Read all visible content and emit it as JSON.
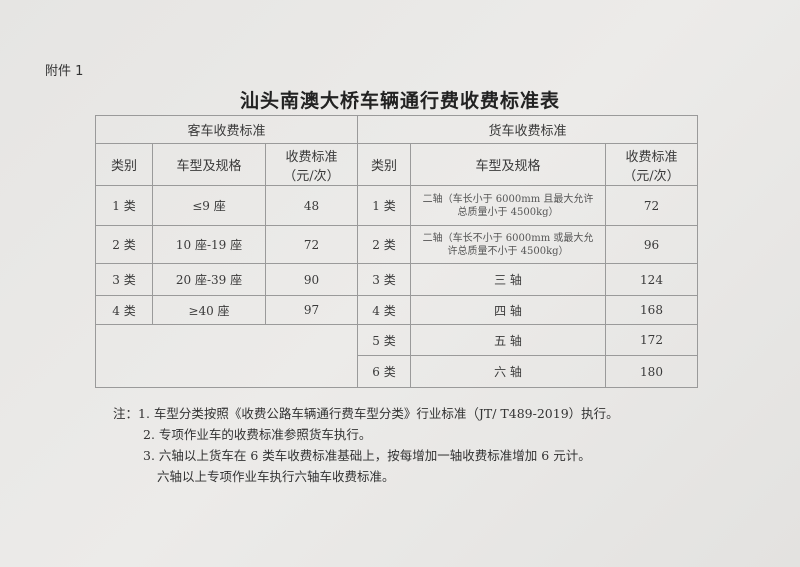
{
  "attachment": "附件 1",
  "title": "汕头南澳大桥车辆通行费收费标准表",
  "passenger": {
    "heading": "客车收费标准",
    "col_class": "类别",
    "col_type": "车型及规格",
    "col_fee": "收费标准\n（元/次）",
    "rows": [
      {
        "cls": "1 类",
        "type": "≤9 座",
        "fee": "48"
      },
      {
        "cls": "2 类",
        "type": "10 座-19 座",
        "fee": "72"
      },
      {
        "cls": "3 类",
        "type": "20 座-39 座",
        "fee": "90"
      },
      {
        "cls": "4 类",
        "type": "≥40 座",
        "fee": "97"
      }
    ]
  },
  "truck": {
    "heading": "货车收费标准",
    "col_class": "类别",
    "col_type": "车型及规格",
    "col_fee": "收费标准\n（元/次）",
    "rows": [
      {
        "cls": "1 类",
        "type": "二轴（车长小于 6000mm 且最大允许总质量小于 4500kg）",
        "fee": "72"
      },
      {
        "cls": "2 类",
        "type": "二轴（车长不小于 6000mm 或最大允许总质量不小于 4500kg）",
        "fee": "96"
      },
      {
        "cls": "3 类",
        "type": "三 轴",
        "fee": "124"
      },
      {
        "cls": "4 类",
        "type": "四 轴",
        "fee": "168"
      },
      {
        "cls": "5 类",
        "type": "五 轴",
        "fee": "172"
      },
      {
        "cls": "6 类",
        "type": "六 轴",
        "fee": "180"
      }
    ]
  },
  "notes": [
    "注：1. 车型分类按照《收费公路车辆通行费车型分类》行业标准（JT/ T489-2019）执行。",
    "2. 专项作业车的收费标准参照货车执行。",
    "3. 六轴以上货车在 6 类车收费标准基础上，按每增加一轴收费标准增加 6 元计。",
    "六轴以上专项作业车执行六轴车收费标准。"
  ]
}
